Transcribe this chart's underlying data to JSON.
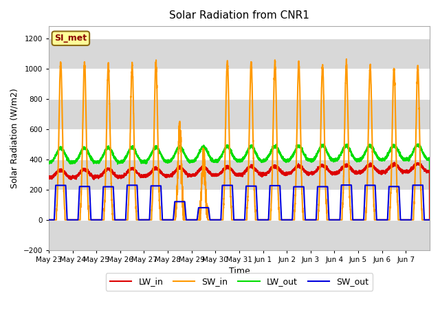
{
  "title": "Solar Radiation from CNR1",
  "xlabel": "Time",
  "ylabel": "Solar Radiation (W/m2)",
  "ylim": [
    -200,
    1280
  ],
  "yticks": [
    -200,
    0,
    200,
    400,
    600,
    800,
    1000,
    1200
  ],
  "background_color": "#ffffff",
  "plot_bg_color": "#ffffff",
  "grid_bands": [
    [
      -200,
      0,
      "#d8d8d8"
    ],
    [
      0,
      200,
      "#ffffff"
    ],
    [
      200,
      400,
      "#d8d8d8"
    ],
    [
      400,
      600,
      "#ffffff"
    ],
    [
      600,
      800,
      "#d8d8d8"
    ],
    [
      800,
      1000,
      "#ffffff"
    ],
    [
      1000,
      1200,
      "#d8d8d8"
    ],
    [
      1200,
      1280,
      "#ffffff"
    ]
  ],
  "annotation_text": "SI_met",
  "annotation_bg": "#ffff99",
  "annotation_border": "#8b6914",
  "annotation_text_color": "#8b0000",
  "line_colors": {
    "LW_in": "#dd0000",
    "SW_in": "#ff9900",
    "LW_out": "#00dd00",
    "SW_out": "#0000dd"
  },
  "line_width": 1.5,
  "n_days": 16,
  "xtick_labels": [
    "May 23",
    "May 24",
    "May 25",
    "May 26",
    "May 27",
    "May 28",
    "May 29",
    "May 30",
    "May 31",
    "Jun 1",
    "Jun 2",
    "Jun 3",
    "Jun 4",
    "Jun 5",
    "Jun 6",
    "Jun 7"
  ],
  "figsize": [
    6.4,
    4.8
  ],
  "dpi": 100
}
